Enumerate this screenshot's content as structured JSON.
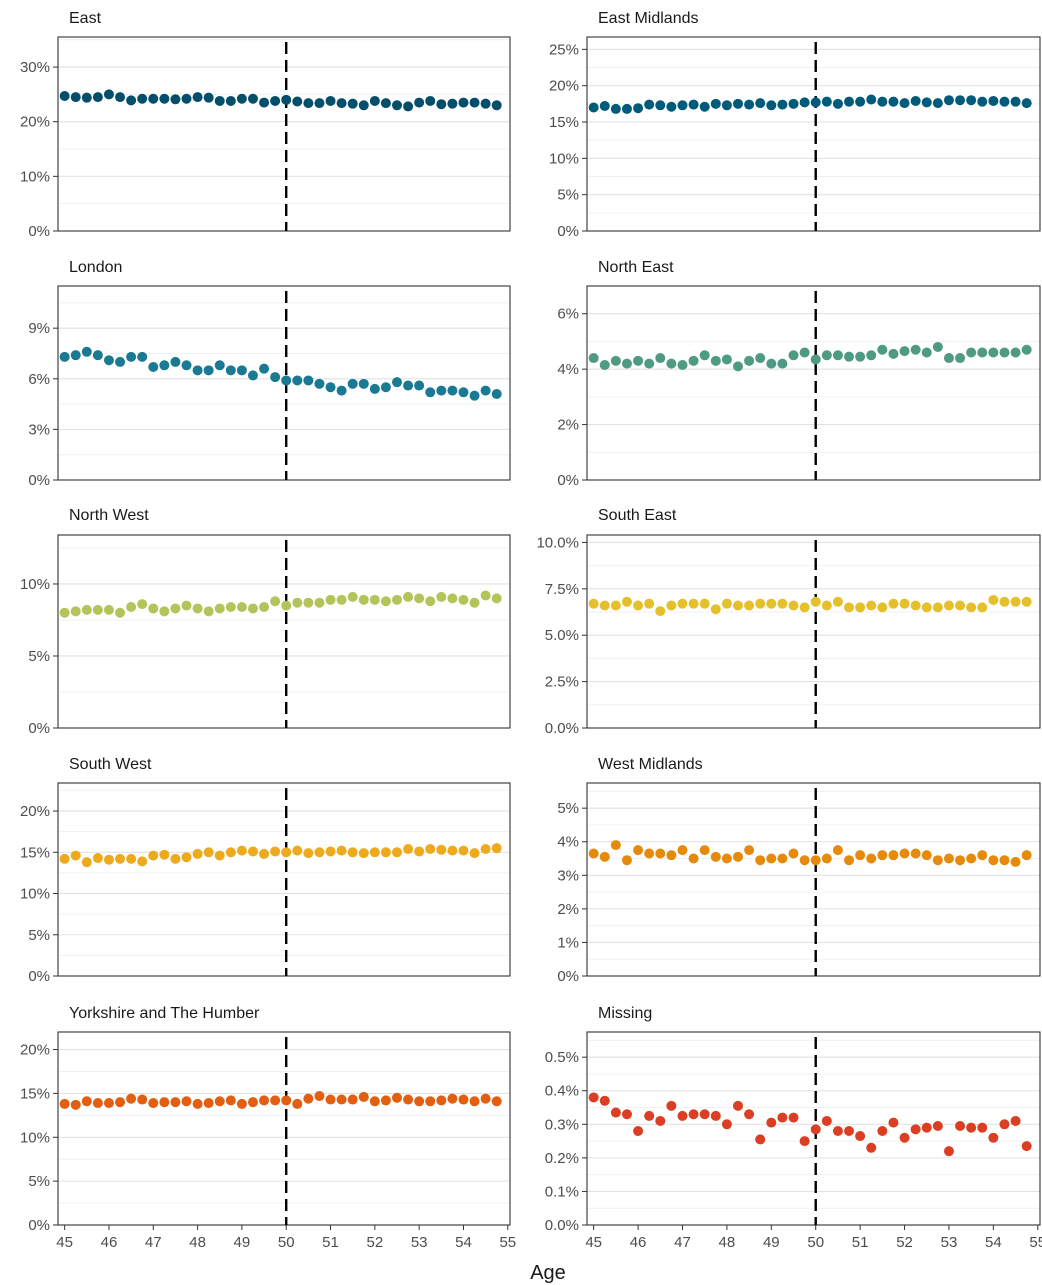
{
  "chart_data": {
    "type": "scatter",
    "layout": "facet-grid-5x2",
    "xlabel": "Age",
    "x_ticks": [
      45,
      46,
      47,
      48,
      49,
      50,
      51,
      52,
      53,
      54,
      55
    ],
    "x_range": [
      44.85,
      55.05
    ],
    "vline": 50,
    "ages": [
      45,
      45.25,
      45.5,
      45.75,
      46,
      46.25,
      46.5,
      46.75,
      47,
      47.25,
      47.5,
      47.75,
      48,
      48.25,
      48.5,
      48.75,
      49,
      49.25,
      49.5,
      49.75,
      50,
      50.25,
      50.5,
      50.75,
      51,
      51.25,
      51.5,
      51.75,
      52,
      52.25,
      52.5,
      52.75,
      53,
      53.25,
      53.5,
      53.75,
      54,
      54.25,
      54.5,
      54.75
    ],
    "panels": [
      {
        "title": "East",
        "color": "#034e6b",
        "ylim": [
          0,
          35.5
        ],
        "y_ticks": [
          0,
          10,
          20,
          30
        ],
        "y_tick_labels": [
          "0%",
          "10%",
          "20%",
          "30%"
        ],
        "values": [
          24.7,
          24.5,
          24.4,
          24.5,
          25.0,
          24.5,
          23.9,
          24.2,
          24.2,
          24.2,
          24.1,
          24.2,
          24.5,
          24.4,
          23.8,
          23.8,
          24.2,
          24.2,
          23.5,
          23.8,
          24.0,
          23.7,
          23.4,
          23.4,
          23.8,
          23.4,
          23.3,
          23.0,
          23.8,
          23.4,
          23.0,
          22.8,
          23.5,
          23.8,
          23.2,
          23.3,
          23.5,
          23.5,
          23.3,
          23.0
        ]
      },
      {
        "title": "East Midlands",
        "color": "#005b7a",
        "ylim": [
          0,
          26.7
        ],
        "y_ticks": [
          0,
          5,
          10,
          15,
          20,
          25
        ],
        "y_tick_labels": [
          "0%",
          "5%",
          "10%",
          "15%",
          "20%",
          "25%"
        ],
        "values": [
          17.0,
          17.2,
          16.8,
          16.8,
          16.9,
          17.4,
          17.3,
          17.1,
          17.3,
          17.4,
          17.1,
          17.5,
          17.3,
          17.5,
          17.4,
          17.6,
          17.3,
          17.4,
          17.5,
          17.7,
          17.7,
          17.8,
          17.5,
          17.8,
          17.8,
          18.1,
          17.8,
          17.8,
          17.6,
          17.9,
          17.7,
          17.6,
          18.0,
          18.0,
          18.0,
          17.8,
          17.9,
          17.8,
          17.8,
          17.6
        ]
      },
      {
        "title": "London",
        "color": "#1a7a94",
        "ylim": [
          0,
          11.5
        ],
        "y_ticks": [
          0,
          3,
          6,
          9
        ],
        "y_tick_labels": [
          "0%",
          "3%",
          "6%",
          "9%"
        ],
        "values": [
          7.3,
          7.4,
          7.6,
          7.4,
          7.1,
          7.0,
          7.3,
          7.3,
          6.7,
          6.8,
          7.0,
          6.8,
          6.5,
          6.5,
          6.8,
          6.5,
          6.5,
          6.2,
          6.6,
          6.1,
          5.9,
          5.9,
          5.9,
          5.7,
          5.5,
          5.3,
          5.7,
          5.7,
          5.4,
          5.5,
          5.8,
          5.6,
          5.6,
          5.2,
          5.3,
          5.3,
          5.2,
          5.0,
          5.3,
          5.1
        ]
      },
      {
        "title": "North East",
        "color": "#4e9a82",
        "ylim": [
          0,
          7.0
        ],
        "y_ticks": [
          0,
          2,
          4,
          6
        ],
        "y_tick_labels": [
          "0%",
          "2%",
          "4%",
          "6%"
        ],
        "values": [
          4.4,
          4.15,
          4.3,
          4.2,
          4.3,
          4.2,
          4.4,
          4.2,
          4.15,
          4.3,
          4.5,
          4.3,
          4.35,
          4.1,
          4.3,
          4.4,
          4.2,
          4.2,
          4.5,
          4.6,
          4.35,
          4.5,
          4.5,
          4.45,
          4.45,
          4.5,
          4.7,
          4.55,
          4.65,
          4.7,
          4.6,
          4.8,
          4.4,
          4.4,
          4.6,
          4.6,
          4.6,
          4.6,
          4.6,
          4.7
        ]
      },
      {
        "title": "North West",
        "color": "#b5c45a",
        "ylim": [
          0,
          13.4
        ],
        "y_ticks": [
          0,
          5,
          10
        ],
        "y_tick_labels": [
          "0%",
          "5%",
          "10%"
        ],
        "values": [
          8.0,
          8.1,
          8.2,
          8.2,
          8.2,
          8.0,
          8.4,
          8.6,
          8.3,
          8.1,
          8.3,
          8.5,
          8.3,
          8.1,
          8.3,
          8.4,
          8.4,
          8.3,
          8.4,
          8.8,
          8.5,
          8.7,
          8.7,
          8.7,
          8.9,
          8.9,
          9.1,
          8.9,
          8.9,
          8.8,
          8.9,
          9.1,
          9.0,
          8.8,
          9.1,
          9.0,
          8.9,
          8.7,
          9.2,
          9.0
        ]
      },
      {
        "title": "South East",
        "color": "#e6c02c",
        "ylim": [
          0,
          10.4
        ],
        "y_ticks": [
          0,
          2.5,
          5,
          7.5,
          10
        ],
        "y_tick_labels": [
          "0.0%",
          "2.5%",
          "5.0%",
          "7.5%",
          "10.0%"
        ],
        "values": [
          6.7,
          6.6,
          6.6,
          6.8,
          6.6,
          6.7,
          6.3,
          6.6,
          6.7,
          6.7,
          6.7,
          6.4,
          6.7,
          6.6,
          6.6,
          6.7,
          6.7,
          6.7,
          6.6,
          6.5,
          6.8,
          6.6,
          6.8,
          6.5,
          6.5,
          6.6,
          6.5,
          6.7,
          6.7,
          6.6,
          6.5,
          6.5,
          6.6,
          6.6,
          6.5,
          6.5,
          6.9,
          6.8,
          6.8,
          6.8
        ]
      },
      {
        "title": "South West",
        "color": "#eeaa1d",
        "ylim": [
          0,
          23.4
        ],
        "y_ticks": [
          0,
          5,
          10,
          15,
          20
        ],
        "y_tick_labels": [
          "0%",
          "5%",
          "10%",
          "15%",
          "20%"
        ],
        "values": [
          14.2,
          14.6,
          13.8,
          14.3,
          14.1,
          14.2,
          14.2,
          13.9,
          14.6,
          14.7,
          14.2,
          14.4,
          14.8,
          15.0,
          14.6,
          15.0,
          15.2,
          15.1,
          14.8,
          15.1,
          15.0,
          15.2,
          14.9,
          15.0,
          15.1,
          15.2,
          15.0,
          14.9,
          15.0,
          15.0,
          15.0,
          15.4,
          15.1,
          15.4,
          15.3,
          15.2,
          15.2,
          14.9,
          15.4,
          15.5
        ]
      },
      {
        "title": "West Midlands",
        "color": "#e68a0c",
        "ylim": [
          0,
          5.75
        ],
        "y_ticks": [
          0,
          1,
          2,
          3,
          4,
          5
        ],
        "y_tick_labels": [
          "0%",
          "1%",
          "2%",
          "3%",
          "4%",
          "5%"
        ],
        "values": [
          3.65,
          3.55,
          3.9,
          3.45,
          3.75,
          3.65,
          3.65,
          3.6,
          3.75,
          3.5,
          3.75,
          3.55,
          3.5,
          3.55,
          3.75,
          3.45,
          3.5,
          3.5,
          3.65,
          3.45,
          3.45,
          3.5,
          3.75,
          3.45,
          3.6,
          3.5,
          3.6,
          3.6,
          3.65,
          3.65,
          3.6,
          3.45,
          3.5,
          3.45,
          3.5,
          3.6,
          3.45,
          3.45,
          3.4,
          3.6
        ]
      },
      {
        "title": "Yorkshire and The Humber",
        "color": "#e25e10",
        "ylim": [
          0,
          22.0
        ],
        "y_ticks": [
          0,
          5,
          10,
          15,
          20
        ],
        "y_tick_labels": [
          "0%",
          "5%",
          "10%",
          "15%",
          "20%"
        ],
        "values": [
          13.8,
          13.7,
          14.1,
          13.9,
          13.9,
          14.0,
          14.4,
          14.3,
          13.9,
          14.0,
          14.0,
          14.1,
          13.8,
          13.9,
          14.1,
          14.2,
          13.8,
          14.0,
          14.2,
          14.2,
          14.2,
          13.8,
          14.4,
          14.7,
          14.3,
          14.3,
          14.3,
          14.6,
          14.1,
          14.2,
          14.5,
          14.3,
          14.1,
          14.1,
          14.2,
          14.4,
          14.3,
          14.1,
          14.4,
          14.1
        ]
      },
      {
        "title": "Missing",
        "color": "#db3e22",
        "ylim": [
          0,
          0.575
        ],
        "y_ticks": [
          0,
          0.1,
          0.2,
          0.3,
          0.4,
          0.5
        ],
        "y_tick_labels": [
          "0.0%",
          "0.1%",
          "0.2%",
          "0.3%",
          "0.4%",
          "0.5%"
        ],
        "values": [
          0.38,
          0.37,
          0.335,
          0.33,
          0.28,
          0.325,
          0.31,
          0.355,
          0.325,
          0.33,
          0.33,
          0.325,
          0.3,
          0.355,
          0.33,
          0.255,
          0.305,
          0.32,
          0.32,
          0.25,
          0.285,
          0.31,
          0.28,
          0.28,
          0.265,
          0.23,
          0.28,
          0.305,
          0.26,
          0.285,
          0.29,
          0.295,
          0.22,
          0.295,
          0.29,
          0.29,
          0.26,
          0.3,
          0.31,
          0.235
        ]
      }
    ]
  }
}
